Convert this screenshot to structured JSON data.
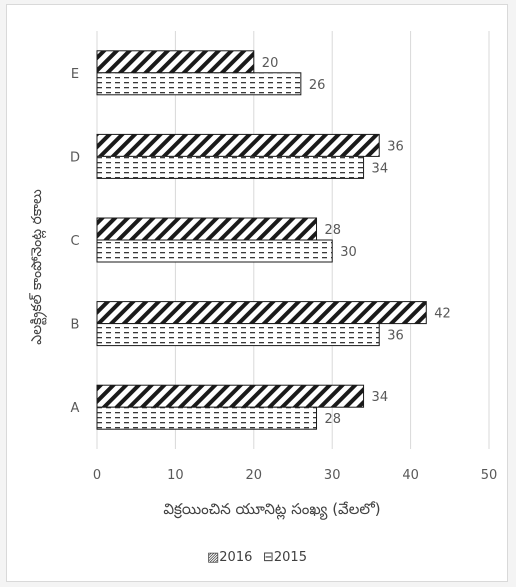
{
  "chart_data": {
    "type": "bar",
    "orientation": "horizontal",
    "categories": [
      "A",
      "B",
      "C",
      "D",
      "E"
    ],
    "series": [
      {
        "name": "2016",
        "values": [
          34,
          42,
          28,
          36,
          20
        ],
        "pattern": "diagonal-hatch",
        "legend_marker": "▨"
      },
      {
        "name": "2015",
        "values": [
          28,
          36,
          30,
          34,
          26
        ],
        "pattern": "dashed-horizontal",
        "legend_marker": "⊟"
      }
    ],
    "xlabel": "విక్రయించిన యూనిట్ల సంఖ్య (వేలలో)",
    "ylabel": "ఎలక్ట్రికల్ కాంపోనెంట్ల రకాలు",
    "xlim": [
      0,
      50
    ],
    "xticks": [
      0,
      10,
      20,
      30,
      40,
      50
    ],
    "grid": "vertical",
    "legend_position": "bottom",
    "colors": {
      "bar_stroke": "#1a1a1a",
      "grid": "#d9d9d9",
      "text": "#595959"
    }
  }
}
